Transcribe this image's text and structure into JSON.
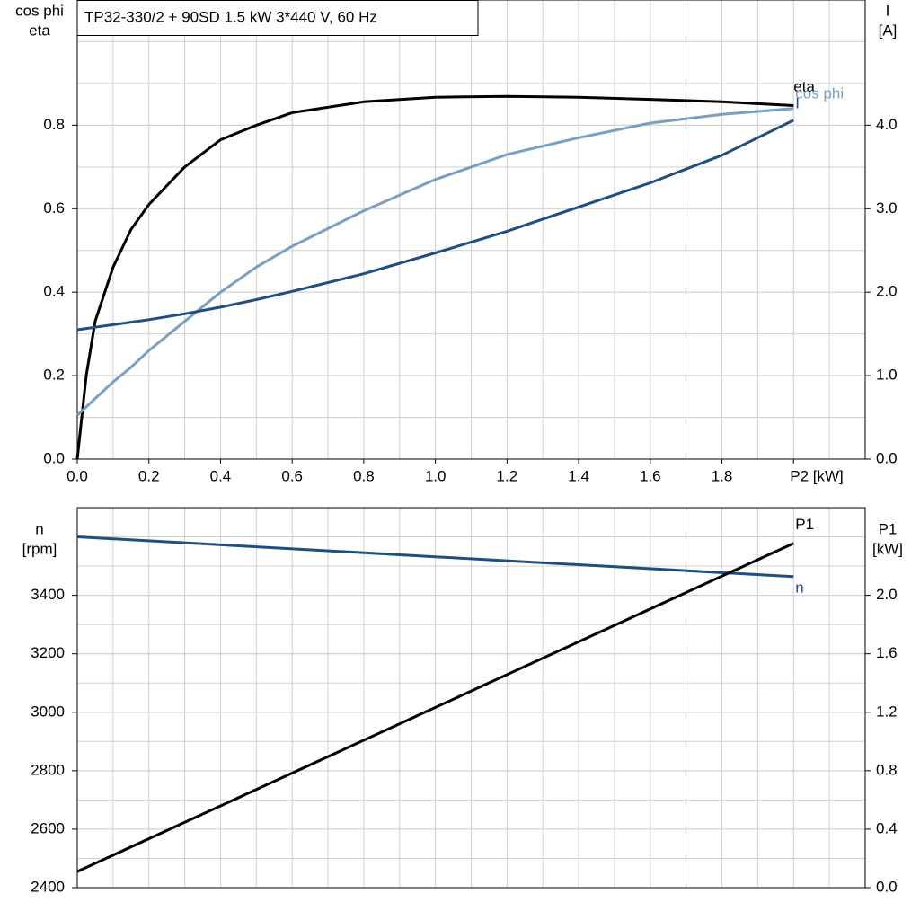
{
  "chart_data": [
    {
      "type": "line",
      "title": "TP32-330/2 + 90SD   1.5 kW   3*440 V, 60 Hz",
      "y_label": [
        "cos phi",
        "eta"
      ],
      "y2_label": [
        "I",
        "[A]"
      ],
      "x": [
        0,
        0.025,
        0.05,
        0.1,
        0.15,
        0.2,
        0.3,
        0.4,
        0.5,
        0.6,
        0.8,
        1.0,
        1.2,
        1.4,
        1.6,
        1.8,
        2.0
      ],
      "xlim": [
        0,
        2.2
      ],
      "xticks": [
        {
          "value": 0,
          "label": "0.0"
        },
        0.2,
        0.4,
        0.6,
        0.8,
        {
          "value": 1,
          "label": "1.0"
        },
        1.2,
        1.4,
        1.6,
        1.8,
        {
          "value": 2,
          "label": "P2 [kW]"
        }
      ],
      "ylim": [
        0,
        1.1
      ],
      "yticks": [
        {
          "value": 0,
          "label": "0.0"
        },
        0.2,
        0.4,
        0.6,
        0.8
      ],
      "y2lim": [
        0,
        5.5
      ],
      "y2ticks": [
        {
          "value": 0,
          "label": "0.0"
        },
        {
          "value": 1,
          "label": "1.0"
        },
        {
          "value": 2,
          "label": "2.0"
        },
        {
          "value": 3,
          "label": "3.0"
        },
        {
          "value": 4,
          "label": "4.0"
        }
      ],
      "grid": true,
      "series": [
        {
          "name": "eta",
          "color": "#000000",
          "values": [
            0,
            0.2,
            0.33,
            0.46,
            0.55,
            0.61,
            0.7,
            0.765,
            0.8,
            0.83,
            0.856,
            0.867,
            0.869,
            0.867,
            0.862,
            0.856,
            0.847
          ]
        },
        {
          "name": "cos phi",
          "color": "#7a9fc0",
          "values": [
            0.105,
            0.125,
            0.145,
            0.185,
            0.22,
            0.26,
            0.33,
            0.4,
            0.46,
            0.51,
            0.595,
            0.67,
            0.73,
            0.77,
            0.805,
            0.826,
            0.84
          ]
        },
        {
          "name": "I",
          "color": "#1f4e80",
          "axis": "y2",
          "values": [
            1.55,
            1.565,
            1.58,
            1.61,
            1.64,
            1.67,
            1.74,
            1.82,
            1.91,
            2.01,
            2.22,
            2.47,
            2.73,
            3.02,
            3.31,
            3.64,
            4.06
          ]
        }
      ]
    },
    {
      "type": "line",
      "y_label": [
        "n",
        "[rpm]"
      ],
      "y2_label": [
        "P1",
        "[kW]"
      ],
      "x": [
        0,
        1,
        2
      ],
      "xlim": [
        0,
        2.2
      ],
      "ylim": [
        2400,
        3700
      ],
      "yticks": [
        2400,
        2600,
        2800,
        3000,
        3200,
        3400
      ],
      "y2lim": [
        0,
        2.6
      ],
      "y2ticks": [
        {
          "value": 0,
          "label": "0.0"
        },
        0.4,
        0.8,
        1.2,
        1.6,
        {
          "value": 2,
          "label": "2.0"
        }
      ],
      "grid": true,
      "series": [
        {
          "name": "n",
          "color": "#1f4e80",
          "values": [
            3600,
            3532,
            3464
          ]
        },
        {
          "name": "P1",
          "color": "#000000",
          "axis": "y2",
          "values": [
            0.11,
            1.233,
            2.356
          ]
        }
      ]
    }
  ]
}
